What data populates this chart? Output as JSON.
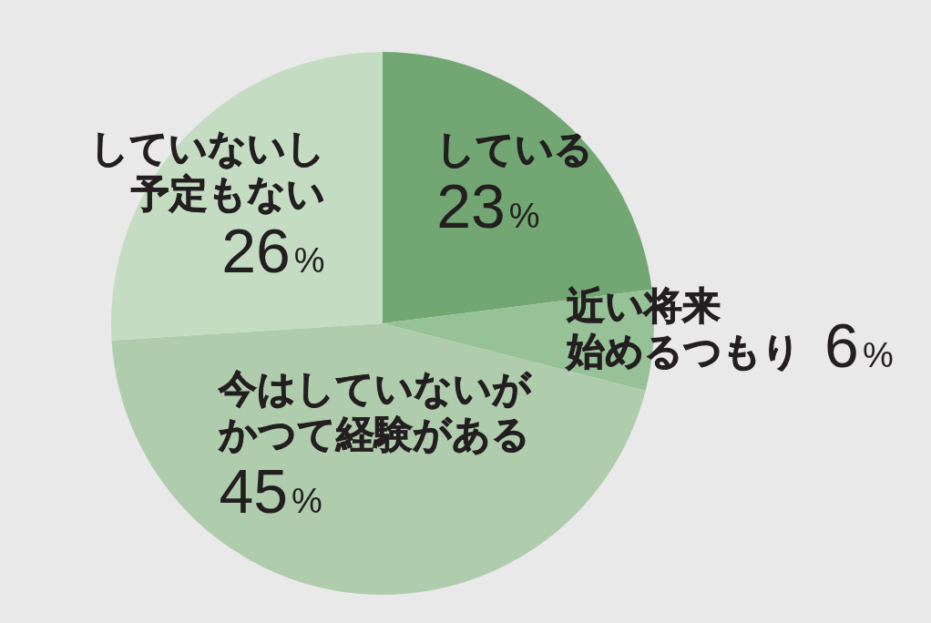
{
  "chart_data": {
    "type": "pie",
    "categories": [
      "している",
      "近い将来始めるつもり",
      "今はしていないがかつて経験がある",
      "していないし予定もない"
    ],
    "values": [
      23,
      6,
      45,
      26
    ],
    "colors": [
      "#72a773",
      "#97c196",
      "#afcdac",
      "#c4ddc2"
    ],
    "value_labels": [
      "23%",
      "6%",
      "45%",
      "26%"
    ]
  }
}
